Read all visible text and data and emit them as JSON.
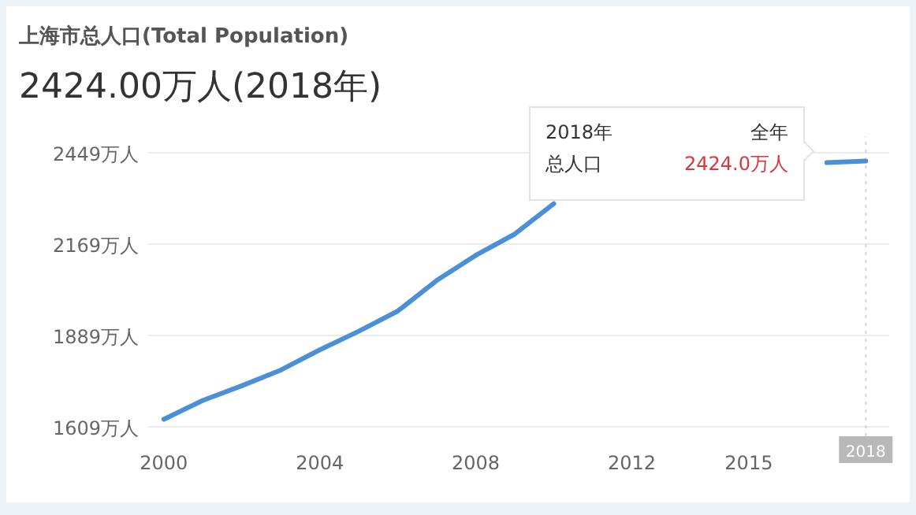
{
  "chart_data": {
    "type": "line",
    "title": "上海市总人口(Total Population)",
    "subtitle": "2424.00万人(2018年)",
    "x": [
      2000,
      2001,
      2002,
      2003,
      2004,
      2005,
      2006,
      2007,
      2008,
      2009,
      2010,
      2011,
      2012,
      2013,
      2014,
      2015,
      2016,
      2017,
      2018
    ],
    "series": [
      {
        "color": "#4a8fd8",
        "values": [
          1632,
          1690,
          1735,
          1783,
          1845,
          1902,
          1964,
          2058,
          2135,
          2200,
          2293,
          null,
          null,
          null,
          null,
          null,
          null,
          2419,
          2424
        ]
      }
    ],
    "xlim": [
      1999.6,
      2018.6
    ],
    "xticks": [
      2000,
      2004,
      2008,
      2012,
      2015
    ],
    "ylim": [
      1609,
      2500
    ],
    "yticks": [
      {
        "value": 1609,
        "label": "1609万人"
      },
      {
        "value": 1889,
        "label": "1889万人"
      },
      {
        "value": 2169,
        "label": "2169万人"
      },
      {
        "value": 2449,
        "label": "2449万人"
      }
    ],
    "grid": "y",
    "marker": "none",
    "line_style": "solid",
    "ref_lines": [
      {
        "axis": "x",
        "value": 2018,
        "label": "2018",
        "line_style": "dotted"
      }
    ],
    "annotations": [
      "2018年",
      "全年",
      "总人口",
      "2424.0万人"
    ]
  }
}
